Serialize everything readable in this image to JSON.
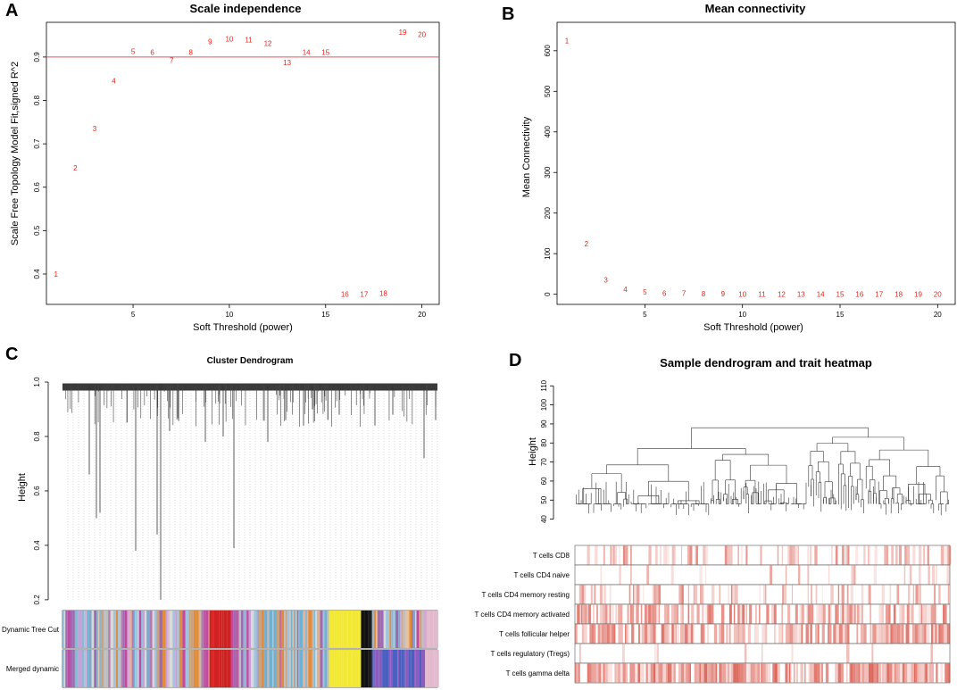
{
  "panels": {
    "A": {
      "letter": "A"
    },
    "B": {
      "letter": "B"
    },
    "C": {
      "letter": "C"
    },
    "D": {
      "letter": "D"
    }
  },
  "chart_data": [
    {
      "id": "A",
      "type": "scatter",
      "title": "Scale independence",
      "xlabel": "Soft Threshold (power)",
      "ylabel": "Scale Free Topology Model Fit,signed R^2",
      "x": [
        1,
        2,
        3,
        4,
        5,
        6,
        7,
        8,
        9,
        10,
        11,
        12,
        13,
        14,
        15,
        16,
        17,
        18,
        19,
        20
      ],
      "y": [
        0.4,
        0.645,
        0.735,
        0.845,
        0.913,
        0.911,
        0.893,
        0.911,
        0.936,
        0.942,
        0.94,
        0.932,
        0.887,
        0.911,
        0.911,
        0.354,
        0.354,
        0.356,
        0.957,
        0.952
      ],
      "point_labels": [
        "1",
        "2",
        "3",
        "4",
        "5",
        "6",
        "7",
        "8",
        "9",
        "10",
        "11",
        "12",
        "13",
        "14",
        "15",
        "16",
        "17",
        "18",
        "19",
        "20"
      ],
      "xlim": [
        0.5,
        20.9
      ],
      "ylim": [
        0.33,
        0.98
      ],
      "xticks": [
        5,
        10,
        15,
        20
      ],
      "yticks": [
        0.4,
        0.5,
        0.6,
        0.7,
        0.8,
        0.9
      ],
      "hline": 0.9,
      "hline_color": "#e8505b",
      "point_color": "#e3271d"
    },
    {
      "id": "B",
      "type": "scatter",
      "title": "Mean connectivity",
      "xlabel": "Soft Threshold (power)",
      "ylabel": "Mean Connectivity",
      "x": [
        1,
        2,
        3,
        4,
        5,
        6,
        7,
        8,
        9,
        10,
        11,
        12,
        13,
        14,
        15,
        16,
        17,
        18,
        19,
        20
      ],
      "y": [
        625,
        125,
        35,
        12,
        6,
        3,
        2,
        1.5,
        1,
        0.8,
        0.6,
        0.5,
        0.4,
        0.3,
        0.3,
        0.2,
        0.2,
        0.2,
        0.2,
        0.1
      ],
      "point_labels": [
        "1",
        "2",
        "3",
        "4",
        "5",
        "6",
        "7",
        "8",
        "9",
        "10",
        "11",
        "12",
        "13",
        "14",
        "15",
        "16",
        "17",
        "18",
        "19",
        "20"
      ],
      "xlim": [
        0.5,
        20.9
      ],
      "ylim": [
        -25,
        670
      ],
      "xticks": [
        5,
        10,
        15,
        20
      ],
      "yticks": [
        0,
        100,
        200,
        300,
        400,
        500,
        600
      ],
      "point_color": "#e3271d"
    },
    {
      "id": "C",
      "type": "dendrogram",
      "title": "Cluster Dendrogram",
      "ylabel": "Height",
      "ylim": [
        0.18,
        1.0
      ],
      "yticks": [
        0.2,
        0.4,
        0.6,
        0.8,
        1.0
      ],
      "color_bars": [
        "Dynamic Tree Cut",
        "Merged dynamic"
      ],
      "module_colors": [
        "#7fa8c9",
        "#c9a27e",
        "#8fb7d4",
        "#bdbdbd",
        "#d4a8d0",
        "#e08c3a",
        "#a0c4e0",
        "#c8a0d8",
        "#b07ab0",
        "#e8c0a0",
        "#d8d8d8",
        "#9e6bb0",
        "#c04aa0",
        "#70b0d0",
        "#e0b090",
        "#d02020",
        "#8a5cc0",
        "#4a60c0",
        "#e0e020",
        "#f0d0e0",
        "#101010",
        "#f2e830",
        "#4aa0d0",
        "#e2b8cc",
        "#a0c060",
        "#c87850"
      ]
    },
    {
      "id": "D",
      "type": "heatmap",
      "title": "Sample dendrogram and trait heatmap",
      "ylabel": "Height",
      "ylim": [
        37,
        112
      ],
      "yticks": [
        40,
        50,
        60,
        70,
        80,
        90,
        100,
        110
      ],
      "traits": [
        {
          "name": "T cells CD8",
          "density": 0.35,
          "strength": 0.55
        },
        {
          "name": "T cells CD4 naive",
          "density": 0.12,
          "strength": 0.5
        },
        {
          "name": "T cells CD4 memory resting",
          "density": 0.3,
          "strength": 0.6
        },
        {
          "name": "T cells CD4 memory activated",
          "density": 0.6,
          "strength": 0.65
        },
        {
          "name": "T cells follicular helper",
          "density": 0.7,
          "strength": 0.7
        },
        {
          "name": "T cells regulatory (Tregs)",
          "density": 0.05,
          "strength": 0.5
        },
        {
          "name": "T cells gamma delta",
          "density": 0.85,
          "strength": 0.75
        }
      ],
      "heat_color": "#d03020"
    }
  ]
}
